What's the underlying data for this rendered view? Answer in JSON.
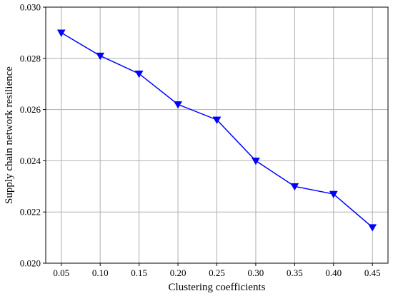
{
  "chart_data": {
    "type": "line",
    "title": "",
    "xlabel": "Clustering coefficients",
    "ylabel": "Supply chain network resilience",
    "x": [
      0.05,
      0.1,
      0.15,
      0.2,
      0.25,
      0.3,
      0.35,
      0.4,
      0.45
    ],
    "x_tick_labels": [
      "0.05",
      "0.10",
      "0.15",
      "0.20",
      "0.25",
      "0.30",
      "0.35",
      "0.40",
      "0.45"
    ],
    "y_ticks": [
      0.02,
      0.022,
      0.024,
      0.026,
      0.028,
      0.03
    ],
    "y_tick_labels": [
      "0.020",
      "0.022",
      "0.024",
      "0.026",
      "0.028",
      "0.030"
    ],
    "xlim": [
      0.03,
      0.47
    ],
    "ylim": [
      0.02,
      0.03
    ],
    "grid": true,
    "legend": "none",
    "series": [
      {
        "values": [
          0.029,
          0.0281,
          0.0274,
          0.0262,
          0.0256,
          0.024,
          0.023,
          0.0227,
          0.0214
        ],
        "color": "#0000ff",
        "marker": "triangle-down"
      }
    ]
  }
}
